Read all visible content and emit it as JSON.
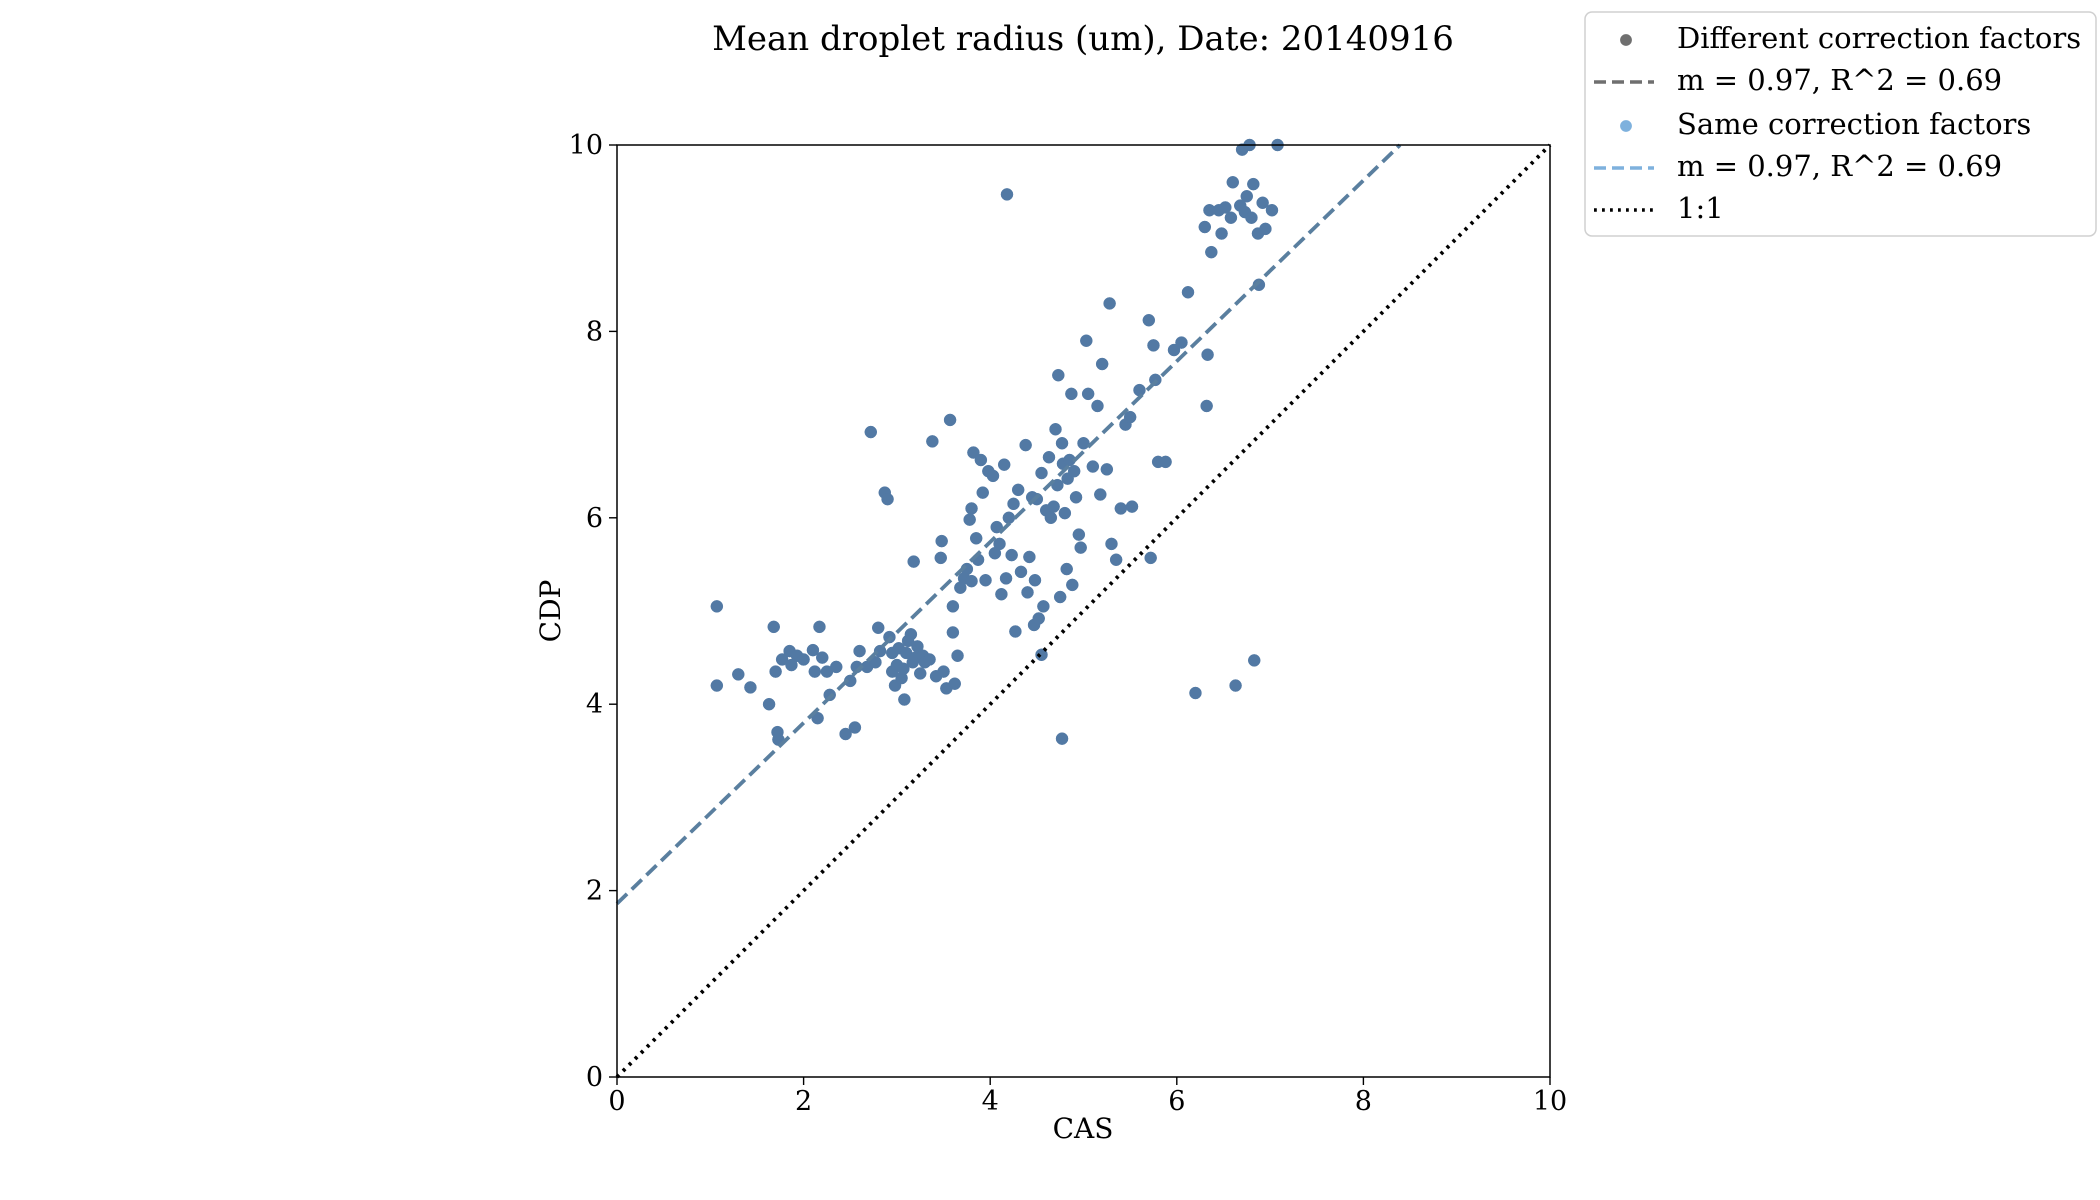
{
  "chart_data": {
    "type": "scatter",
    "title": "Mean droplet radius (um), Date: 20140916",
    "xlabel": "CAS",
    "ylabel": "CDP",
    "xlim": [
      0,
      10
    ],
    "ylim": [
      0,
      10
    ],
    "xticks": [
      "0",
      "2",
      "4",
      "6",
      "8",
      "10"
    ],
    "yticks": [
      "0",
      "2",
      "4",
      "6",
      "8",
      "10"
    ],
    "grid": false,
    "legend_position": "outside-top-right",
    "colors": {
      "different_points": "#6f6f6f",
      "different_fit": "#6f6f6f",
      "same_points": "#7eb1dd",
      "same_fit": "#7eb1dd",
      "overlap_points": "#5279a4",
      "overlap_fit": "#5a7f9f",
      "one_to_one": "#000000"
    },
    "series": [
      {
        "name": "Different correction factors",
        "kind": "scatter",
        "points": [
          [
            1.07,
            5.05
          ],
          [
            1.07,
            4.2
          ],
          [
            1.3,
            4.32
          ],
          [
            1.43,
            4.18
          ],
          [
            1.63,
            4.0
          ],
          [
            1.68,
            4.83
          ],
          [
            1.7,
            4.35
          ],
          [
            1.72,
            3.7
          ],
          [
            1.73,
            3.62
          ],
          [
            1.77,
            4.48
          ],
          [
            1.85,
            4.57
          ],
          [
            1.93,
            4.52
          ],
          [
            1.87,
            4.42
          ],
          [
            2.0,
            4.48
          ],
          [
            2.1,
            4.58
          ],
          [
            2.17,
            4.83
          ],
          [
            2.12,
            4.35
          ],
          [
            2.15,
            3.85
          ],
          [
            2.2,
            4.5
          ],
          [
            2.25,
            4.35
          ],
          [
            2.28,
            4.1
          ],
          [
            2.35,
            4.4
          ],
          [
            2.45,
            3.68
          ],
          [
            2.5,
            4.25
          ],
          [
            2.55,
            3.75
          ],
          [
            2.57,
            4.4
          ],
          [
            2.6,
            4.57
          ],
          [
            2.68,
            4.4
          ],
          [
            2.72,
            6.92
          ],
          [
            2.77,
            4.45
          ],
          [
            2.82,
            4.57
          ],
          [
            2.8,
            4.82
          ],
          [
            2.87,
            6.27
          ],
          [
            2.9,
            6.2
          ],
          [
            2.92,
            4.72
          ],
          [
            2.95,
            4.55
          ],
          [
            2.95,
            4.35
          ],
          [
            2.98,
            4.2
          ],
          [
            3.0,
            4.42
          ],
          [
            3.02,
            4.6
          ],
          [
            3.05,
            4.28
          ],
          [
            3.07,
            4.38
          ],
          [
            3.08,
            4.05
          ],
          [
            3.1,
            4.55
          ],
          [
            3.12,
            4.68
          ],
          [
            3.15,
            4.75
          ],
          [
            3.17,
            4.45
          ],
          [
            3.18,
            5.53
          ],
          [
            3.2,
            4.5
          ],
          [
            3.22,
            4.62
          ],
          [
            3.25,
            4.33
          ],
          [
            3.28,
            4.52
          ],
          [
            3.3,
            4.45
          ],
          [
            3.35,
            4.48
          ],
          [
            3.38,
            6.82
          ],
          [
            3.42,
            4.3
          ],
          [
            3.47,
            5.57
          ],
          [
            3.48,
            5.75
          ],
          [
            3.5,
            4.35
          ],
          [
            3.53,
            4.17
          ],
          [
            3.57,
            7.05
          ],
          [
            3.6,
            5.05
          ],
          [
            3.6,
            4.77
          ],
          [
            3.62,
            4.22
          ],
          [
            3.65,
            4.52
          ],
          [
            3.68,
            5.25
          ],
          [
            3.72,
            5.35
          ],
          [
            3.75,
            5.45
          ],
          [
            3.78,
            5.98
          ],
          [
            3.8,
            6.1
          ],
          [
            3.82,
            6.7
          ],
          [
            3.85,
            5.78
          ],
          [
            3.87,
            5.55
          ],
          [
            3.9,
            6.62
          ],
          [
            3.92,
            6.27
          ],
          [
            3.95,
            5.33
          ],
          [
            3.98,
            6.5
          ],
          [
            4.03,
            6.45
          ],
          [
            4.05,
            5.62
          ],
          [
            4.07,
            5.9
          ],
          [
            4.1,
            5.72
          ],
          [
            4.12,
            5.18
          ],
          [
            4.15,
            6.57
          ],
          [
            4.17,
            5.35
          ],
          [
            4.2,
            6.0
          ],
          [
            4.18,
            9.47
          ],
          [
            4.23,
            5.6
          ],
          [
            4.25,
            6.15
          ],
          [
            4.27,
            4.78
          ],
          [
            4.3,
            6.3
          ],
          [
            4.33,
            5.42
          ],
          [
            4.38,
            6.78
          ],
          [
            4.4,
            5.2
          ],
          [
            4.42,
            5.58
          ],
          [
            4.45,
            6.22
          ],
          [
            4.47,
            4.85
          ],
          [
            4.48,
            5.33
          ],
          [
            4.5,
            6.2
          ],
          [
            4.52,
            4.92
          ],
          [
            4.55,
            6.48
          ],
          [
            4.57,
            5.05
          ],
          [
            4.6,
            6.08
          ],
          [
            4.63,
            6.65
          ],
          [
            4.65,
            6.0
          ],
          [
            4.68,
            6.12
          ],
          [
            4.7,
            6.95
          ],
          [
            4.72,
            6.35
          ],
          [
            4.73,
            7.53
          ],
          [
            4.75,
            5.15
          ],
          [
            4.77,
            6.8
          ],
          [
            4.78,
            6.58
          ],
          [
            4.8,
            6.05
          ],
          [
            4.82,
            5.45
          ],
          [
            4.83,
            6.42
          ],
          [
            4.85,
            6.62
          ],
          [
            4.87,
            7.33
          ],
          [
            4.88,
            5.28
          ],
          [
            4.9,
            6.5
          ],
          [
            4.92,
            6.22
          ],
          [
            4.95,
            5.82
          ],
          [
            4.97,
            5.68
          ],
          [
            5.0,
            6.8
          ],
          [
            5.03,
            7.9
          ],
          [
            5.05,
            7.33
          ],
          [
            5.1,
            6.55
          ],
          [
            5.15,
            7.2
          ],
          [
            5.18,
            6.25
          ],
          [
            5.2,
            7.65
          ],
          [
            5.25,
            6.52
          ],
          [
            5.28,
            8.3
          ],
          [
            5.3,
            5.72
          ],
          [
            5.35,
            5.55
          ],
          [
            5.4,
            6.1
          ],
          [
            5.45,
            7.0
          ],
          [
            5.5,
            7.08
          ],
          [
            5.52,
            6.12
          ],
          [
            5.6,
            7.37
          ],
          [
            5.7,
            8.12
          ],
          [
            5.72,
            5.57
          ],
          [
            5.75,
            7.85
          ],
          [
            5.77,
            7.48
          ],
          [
            5.8,
            6.6
          ],
          [
            5.88,
            6.6
          ],
          [
            5.97,
            7.8
          ],
          [
            6.05,
            7.88
          ],
          [
            6.12,
            8.42
          ],
          [
            6.2,
            4.12
          ],
          [
            6.3,
            9.12
          ],
          [
            6.32,
            7.2
          ],
          [
            6.33,
            7.75
          ],
          [
            6.37,
            8.85
          ],
          [
            6.35,
            9.3
          ],
          [
            6.45,
            9.3
          ],
          [
            6.48,
            9.05
          ],
          [
            6.52,
            9.33
          ],
          [
            6.58,
            9.22
          ],
          [
            6.6,
            9.6
          ],
          [
            6.63,
            4.2
          ],
          [
            6.68,
            9.35
          ],
          [
            6.7,
            9.95
          ],
          [
            6.73,
            9.28
          ],
          [
            6.75,
            9.45
          ],
          [
            6.78,
            10.0
          ],
          [
            6.8,
            9.22
          ],
          [
            6.82,
            9.58
          ],
          [
            6.83,
            4.47
          ],
          [
            6.87,
            9.05
          ],
          [
            6.88,
            8.5
          ],
          [
            6.92,
            9.38
          ],
          [
            6.95,
            9.1
          ],
          [
            7.02,
            9.3
          ],
          [
            7.08,
            10.0
          ],
          [
            4.77,
            3.63
          ],
          [
            4.55,
            4.53
          ],
          [
            3.8,
            5.32
          ]
        ]
      },
      {
        "name": "m = 0.97, R^2 = 0.69",
        "kind": "fit_line",
        "slope": 0.97,
        "intercept": 1.86
      },
      {
        "name": "Same correction factors",
        "kind": "scatter",
        "same_as": "Different correction factors"
      },
      {
        "name": "m = 0.97, R^2 = 0.69",
        "kind": "fit_line",
        "slope": 0.97,
        "intercept": 1.86
      },
      {
        "name": "1:1",
        "kind": "reference_line",
        "slope": 1.0,
        "intercept": 0.0
      }
    ]
  }
}
